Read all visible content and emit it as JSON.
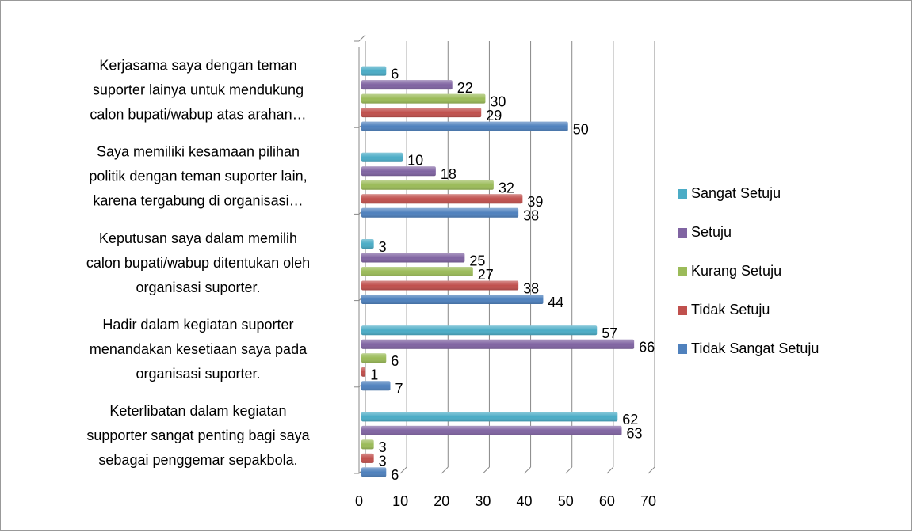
{
  "chart_data": {
    "type": "bar",
    "orientation": "horizontal",
    "categories": [
      [
        "Keterlibatan dalam kegiatan",
        "supporter sangat penting bagi saya",
        "sebagai penggemar sepakbola."
      ],
      [
        "Hadir dalam kegiatan suporter",
        "menandakan kesetiaan saya pada",
        "organisasi suporter."
      ],
      [
        "Keputusan saya dalam memilih",
        "calon bupati/wabup ditentukan oleh",
        "organisasi suporter."
      ],
      [
        "Saya memiliki kesamaan pilihan",
        "politik dengan teman suporter lain,",
        "karena tergabung di organisasi…"
      ],
      [
        "Kerjasama saya dengan teman",
        "suporter lainya untuk mendukung",
        "calon bupati/wabup atas arahan…"
      ]
    ],
    "series": [
      {
        "name": "Tidak Sangat Setuju",
        "color": "#4f81bd",
        "values": [
          6,
          7,
          44,
          38,
          50
        ]
      },
      {
        "name": "Tidak  Setuju",
        "color": "#c0504d",
        "values": [
          3,
          1,
          38,
          39,
          29
        ]
      },
      {
        "name": "Kurang Setuju",
        "color": "#9bbb59",
        "values": [
          3,
          6,
          27,
          32,
          30
        ]
      },
      {
        "name": "Setuju",
        "color": "#8064a2",
        "values": [
          63,
          66,
          25,
          18,
          22
        ]
      },
      {
        "name": "Sangat Setuju",
        "color": "#4bacc6",
        "values": [
          62,
          57,
          3,
          10,
          6
        ]
      }
    ],
    "xlim": [
      0,
      70
    ],
    "xticks": [
      0,
      10,
      20,
      30,
      40,
      50,
      60,
      70
    ],
    "grid": true,
    "legend": "right"
  }
}
